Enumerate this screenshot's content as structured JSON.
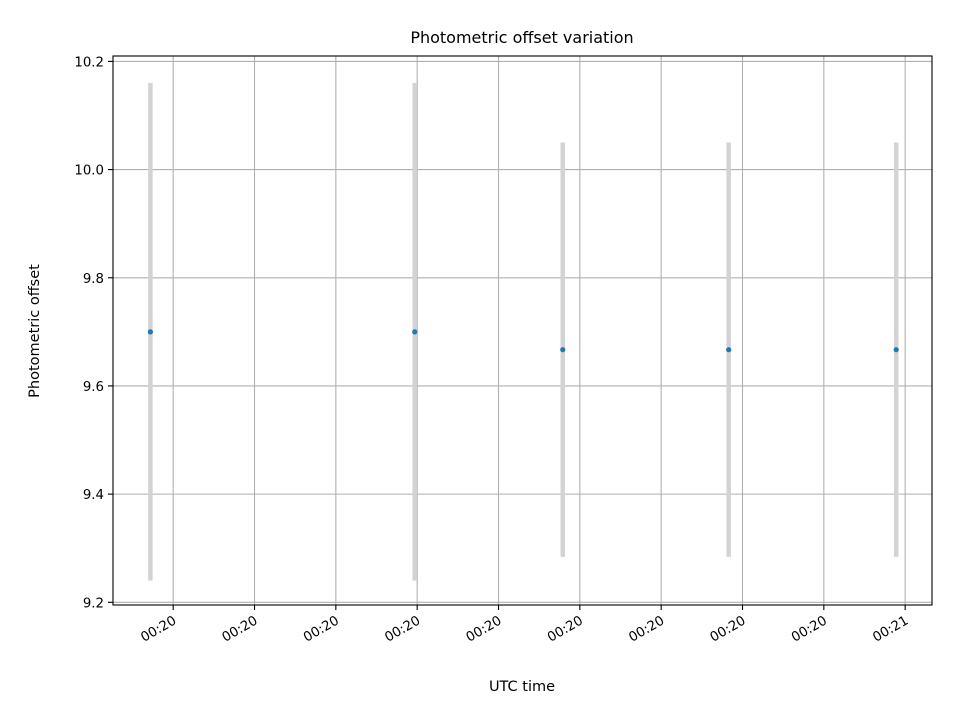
{
  "chart_data": {
    "type": "scatter",
    "title": "Photometric offset variation",
    "xlabel": "UTC time",
    "ylabel": "Photometric offset",
    "x_ticks": [
      "00:20",
      "00:20",
      "00:20",
      "00:20",
      "00:20",
      "00:20",
      "00:20",
      "00:20",
      "00:20",
      "00:21"
    ],
    "x_tick_positions": [
      1,
      2,
      3,
      4,
      5,
      6,
      7,
      8,
      9,
      10
    ],
    "xlim": [
      0.26,
      10.33
    ],
    "ylim": [
      9.195,
      10.21
    ],
    "y_ticks": [
      9.2,
      9.4,
      9.6,
      9.8,
      10.0,
      10.2
    ],
    "y_tick_labels": [
      "9.2",
      "9.4",
      "9.6",
      "9.8",
      "10.0",
      "10.2"
    ],
    "grid": true,
    "series": [
      {
        "x": [
          0.72,
          3.97,
          5.79,
          7.83,
          9.89
        ],
        "y": [
          9.7,
          9.7,
          9.667,
          9.667,
          9.667
        ],
        "yerr": [
          0.46,
          0.46,
          0.383,
          0.383,
          0.383
        ],
        "marker_color": "#1f77b4",
        "errorbar_color": "#d3d3d3"
      }
    ]
  }
}
